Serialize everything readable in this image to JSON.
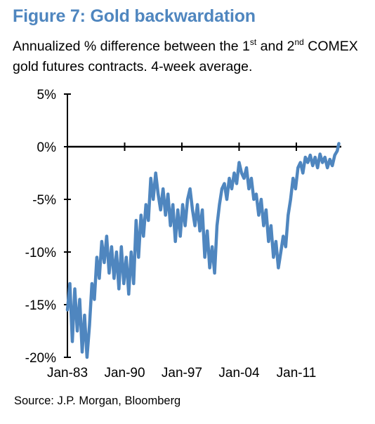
{
  "figure": {
    "title": "Figure 7: Gold backwardation",
    "subtitle_part1": "Annualized % difference between the 1",
    "subtitle_sup1": "st",
    "subtitle_part2": " and 2",
    "subtitle_sup2": "nd",
    "subtitle_part3": " COMEX gold futures contracts. 4-week average.",
    "source": "Source: J.P. Morgan, Bloomberg"
  },
  "chart_data": {
    "type": "line",
    "title": "Figure 7: Gold backwardation",
    "xlabel": "",
    "ylabel": "",
    "x_ticks": [
      "Jan-83",
      "Jan-90",
      "Jan-97",
      "Jan-04",
      "Jan-11"
    ],
    "x_tick_years": [
      1983,
      1990,
      1997,
      2004,
      2011
    ],
    "xlim": [
      1983,
      2016.5
    ],
    "y_ticks": [
      5,
      0,
      -5,
      -10,
      -15,
      -20
    ],
    "y_tick_labels": [
      "5%",
      "0%",
      "-5%",
      "-10%",
      "-15%",
      "-20%"
    ],
    "ylim": [
      -20,
      5
    ],
    "line_color": "#4f86bf",
    "grid": false,
    "series": [
      {
        "x": [
          1983.0,
          1983.3,
          1983.6,
          1983.9,
          1984.2,
          1984.5,
          1984.8,
          1985.1,
          1985.4,
          1985.7,
          1986.0,
          1986.3,
          1986.6,
          1986.9,
          1987.2,
          1987.5,
          1987.8,
          1988.1,
          1988.4,
          1988.7,
          1989.0,
          1989.3,
          1989.6,
          1989.9,
          1990.2,
          1990.5,
          1990.8,
          1991.1,
          1991.4,
          1991.7,
          1992.0,
          1992.3,
          1992.6,
          1992.9,
          1993.2,
          1993.5,
          1993.8,
          1994.1,
          1994.4,
          1994.7,
          1995.0,
          1995.3,
          1995.6,
          1995.9,
          1996.2,
          1996.5,
          1996.8,
          1997.1,
          1997.4,
          1997.7,
          1998.0,
          1998.3,
          1998.6,
          1998.9,
          1999.2,
          1999.5,
          1999.8,
          2000.1,
          2000.4,
          2000.7,
          2001.0,
          2001.3,
          2001.6,
          2001.9,
          2002.2,
          2002.5,
          2002.8,
          2003.1,
          2003.4,
          2003.7,
          2004.0,
          2004.3,
          2004.6,
          2004.9,
          2005.2,
          2005.5,
          2005.8,
          2006.1,
          2006.4,
          2006.7,
          2007.0,
          2007.3,
          2007.6,
          2007.9,
          2008.2,
          2008.5,
          2008.8,
          2009.1,
          2009.4,
          2009.7,
          2010.0,
          2010.3,
          2010.6,
          2010.9,
          2011.2,
          2011.5,
          2011.8,
          2012.1,
          2012.4,
          2012.7,
          2013.0,
          2013.3,
          2013.6,
          2013.9,
          2014.2,
          2014.5,
          2014.8,
          2015.1,
          2015.4,
          2015.7,
          2016.0,
          2016.2
        ],
        "y": [
          -15.5,
          -13.0,
          -18.5,
          -13.5,
          -17.5,
          -14.5,
          -19.5,
          -16.0,
          -20.0,
          -17.0,
          -13.0,
          -14.5,
          -10.5,
          -12.5,
          -9.0,
          -11.0,
          -8.5,
          -12.0,
          -9.5,
          -12.5,
          -10.0,
          -13.5,
          -9.5,
          -13.0,
          -10.5,
          -14.0,
          -10.0,
          -13.0,
          -7.0,
          -10.5,
          -6.5,
          -8.5,
          -5.5,
          -7.0,
          -3.0,
          -5.0,
          -2.5,
          -4.5,
          -6.0,
          -4.0,
          -6.5,
          -4.5,
          -7.5,
          -5.5,
          -9.0,
          -6.0,
          -8.5,
          -5.5,
          -7.5,
          -5.0,
          -4.0,
          -6.0,
          -7.5,
          -5.5,
          -8.0,
          -6.0,
          -10.5,
          -8.0,
          -11.5,
          -9.5,
          -12.0,
          -7.5,
          -5.5,
          -4.0,
          -3.5,
          -5.0,
          -3.0,
          -4.0,
          -2.5,
          -3.5,
          -1.5,
          -2.5,
          -3.0,
          -2.0,
          -4.0,
          -3.0,
          -5.0,
          -4.5,
          -6.5,
          -5.0,
          -7.5,
          -6.0,
          -9.0,
          -7.5,
          -10.5,
          -9.0,
          -11.5,
          -10.0,
          -8.5,
          -9.5,
          -6.5,
          -5.0,
          -3.0,
          -4.0,
          -2.0,
          -1.5,
          -2.5,
          -1.0,
          -1.5,
          -0.8,
          -1.8,
          -1.0,
          -2.0,
          -0.7,
          -1.5,
          -1.0,
          -2.0,
          -1.2,
          -1.8,
          -0.8,
          -0.4,
          0.3
        ]
      }
    ]
  }
}
